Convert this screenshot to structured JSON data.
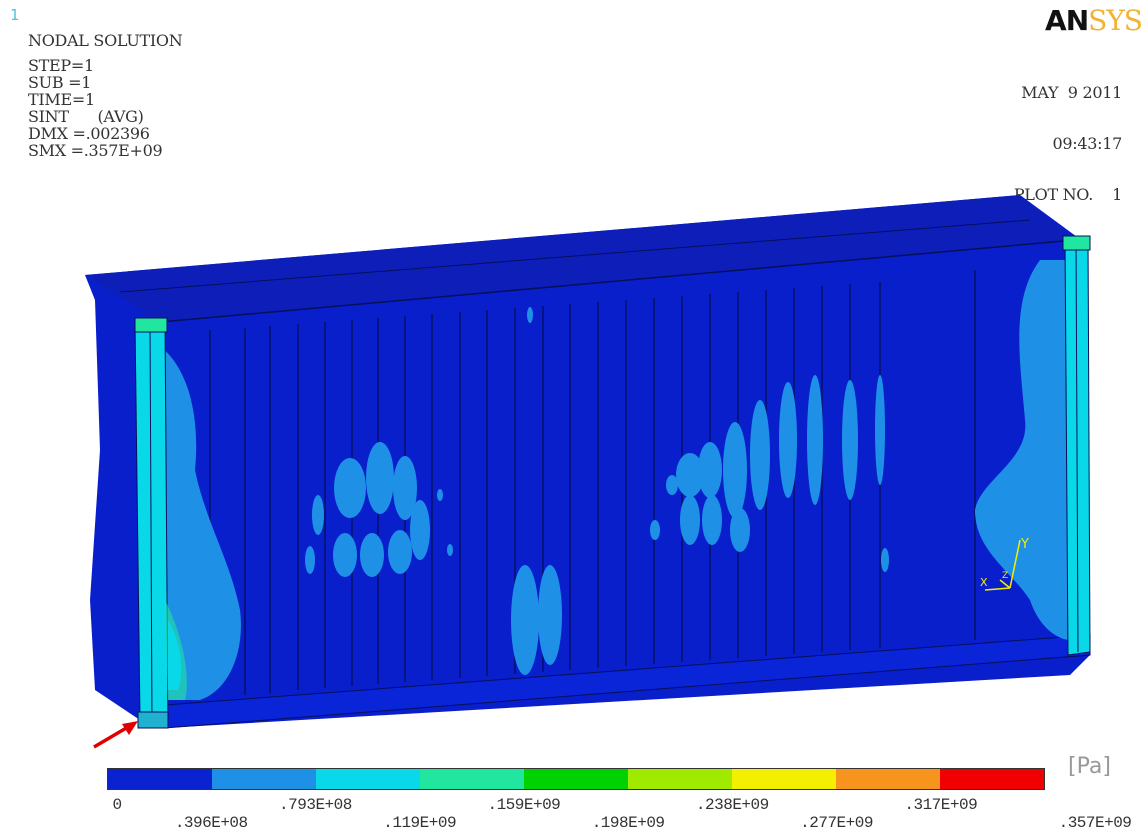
{
  "window_number": "1",
  "brand": {
    "part1": "AN",
    "part2": "SYS"
  },
  "info": {
    "title": "NODAL SOLUTION",
    "lines": [
      "STEP=1",
      "SUB =1",
      "TIME=1",
      "SINT      (AVG)",
      "DMX =.002396",
      "SMX =.357E+09"
    ]
  },
  "stamp": {
    "date": "MAY  9 2011",
    "time": "09:43:17",
    "plot": "PLOT NO.    1"
  },
  "triad": {
    "x_label": "X",
    "y_label": "Y",
    "z_label": "Z"
  },
  "legend": {
    "unit": "[Pa]",
    "colors": [
      "#0a22cf",
      "#1e90e6",
      "#08d8e8",
      "#20e6a0",
      "#00d100",
      "#a0ea00",
      "#f4ef00",
      "#f7941d",
      "#f00000"
    ],
    "ticks": [
      "0",
      ".396E+08",
      ".793E+08",
      ".119E+09",
      ".159E+09",
      ".198E+09",
      ".238E+09",
      ".277E+09",
      ".317E+09",
      ".357E+09"
    ]
  },
  "colors": {
    "low_stress": "#0a1fcc",
    "low_mid": "#1e90e6",
    "mid": "#08d8e8",
    "green_zone": "#20e6a0",
    "arrow": "#e00000"
  }
}
